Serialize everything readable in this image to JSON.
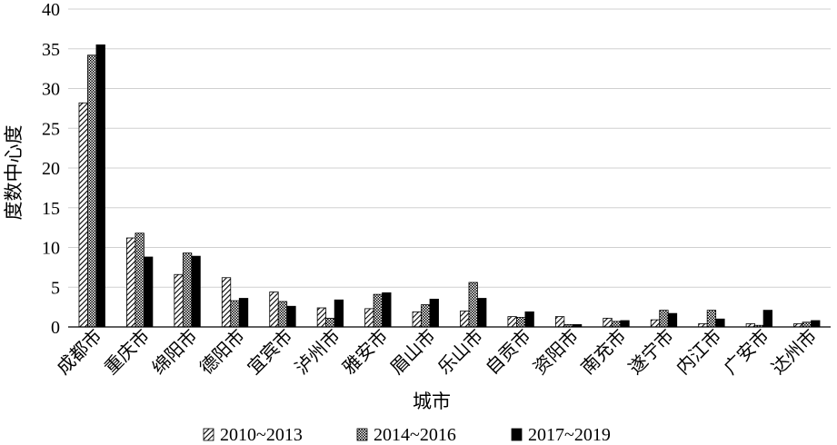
{
  "chart_data": {
    "type": "bar",
    "xlabel": "城市",
    "ylabel": "度数中心度",
    "ylim": [
      0,
      40
    ],
    "yticks": [
      0,
      5,
      10,
      15,
      20,
      25,
      30,
      35,
      40
    ],
    "grid": true,
    "legend_position": "bottom",
    "categories": [
      "成都市",
      "重庆市",
      "绵阳市",
      "德阳市",
      "宜宾市",
      "泸州市",
      "雅安市",
      "眉山市",
      "乐山市",
      "自贡市",
      "资阳市",
      "南充市",
      "遂宁市",
      "内江市",
      "广安市",
      "达州市"
    ],
    "series": [
      {
        "name": "2010~2013",
        "pattern": "diagonal-hatch",
        "color": "#000000",
        "values": [
          28.2,
          11.2,
          6.6,
          6.2,
          4.4,
          2.4,
          2.3,
          1.9,
          2.0,
          1.3,
          1.3,
          1.1,
          0.9,
          0.4,
          0.4,
          0.4
        ]
      },
      {
        "name": "2014~2016",
        "pattern": "crosshatch",
        "color": "#000000",
        "values": [
          34.2,
          11.8,
          9.3,
          3.3,
          3.2,
          1.1,
          4.1,
          2.8,
          5.6,
          1.2,
          0.3,
          0.7,
          2.1,
          2.1,
          0.2,
          0.6
        ]
      },
      {
        "name": "2017~2019",
        "pattern": "solid",
        "color": "#000000",
        "values": [
          35.5,
          8.8,
          8.9,
          3.6,
          2.6,
          3.4,
          4.3,
          3.5,
          3.6,
          1.9,
          0.3,
          0.8,
          1.7,
          1.0,
          2.1,
          0.8
        ]
      }
    ]
  }
}
